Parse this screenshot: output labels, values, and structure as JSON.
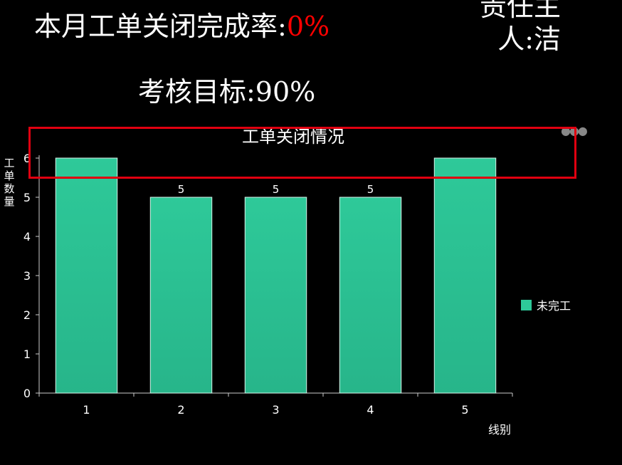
{
  "header": {
    "rate_label": "本月工单关闭完成率:",
    "rate_value": "0%",
    "owner": "责任主人:洁",
    "target": "考核目标:90%"
  },
  "colors": {
    "bar": "#2ec999",
    "rate_value": "#ff0000",
    "highlight": "#e00010"
  },
  "chart_data": {
    "type": "bar",
    "title": "工单关闭情况",
    "categories": [
      "1",
      "2",
      "3",
      "4",
      "5"
    ],
    "series": [
      {
        "name": "未完工",
        "values": [
          6,
          5,
          5,
          5,
          6
        ],
        "data_labels": [
          "",
          "5",
          "5",
          "5",
          ""
        ]
      }
    ],
    "xlabel": "线别",
    "ylabel": "工单数量",
    "ylim": [
      0,
      6
    ],
    "yticks": [
      "0",
      "1",
      "2",
      "3",
      "4",
      "5",
      "6"
    ],
    "grid": false,
    "legend_position": "right"
  }
}
